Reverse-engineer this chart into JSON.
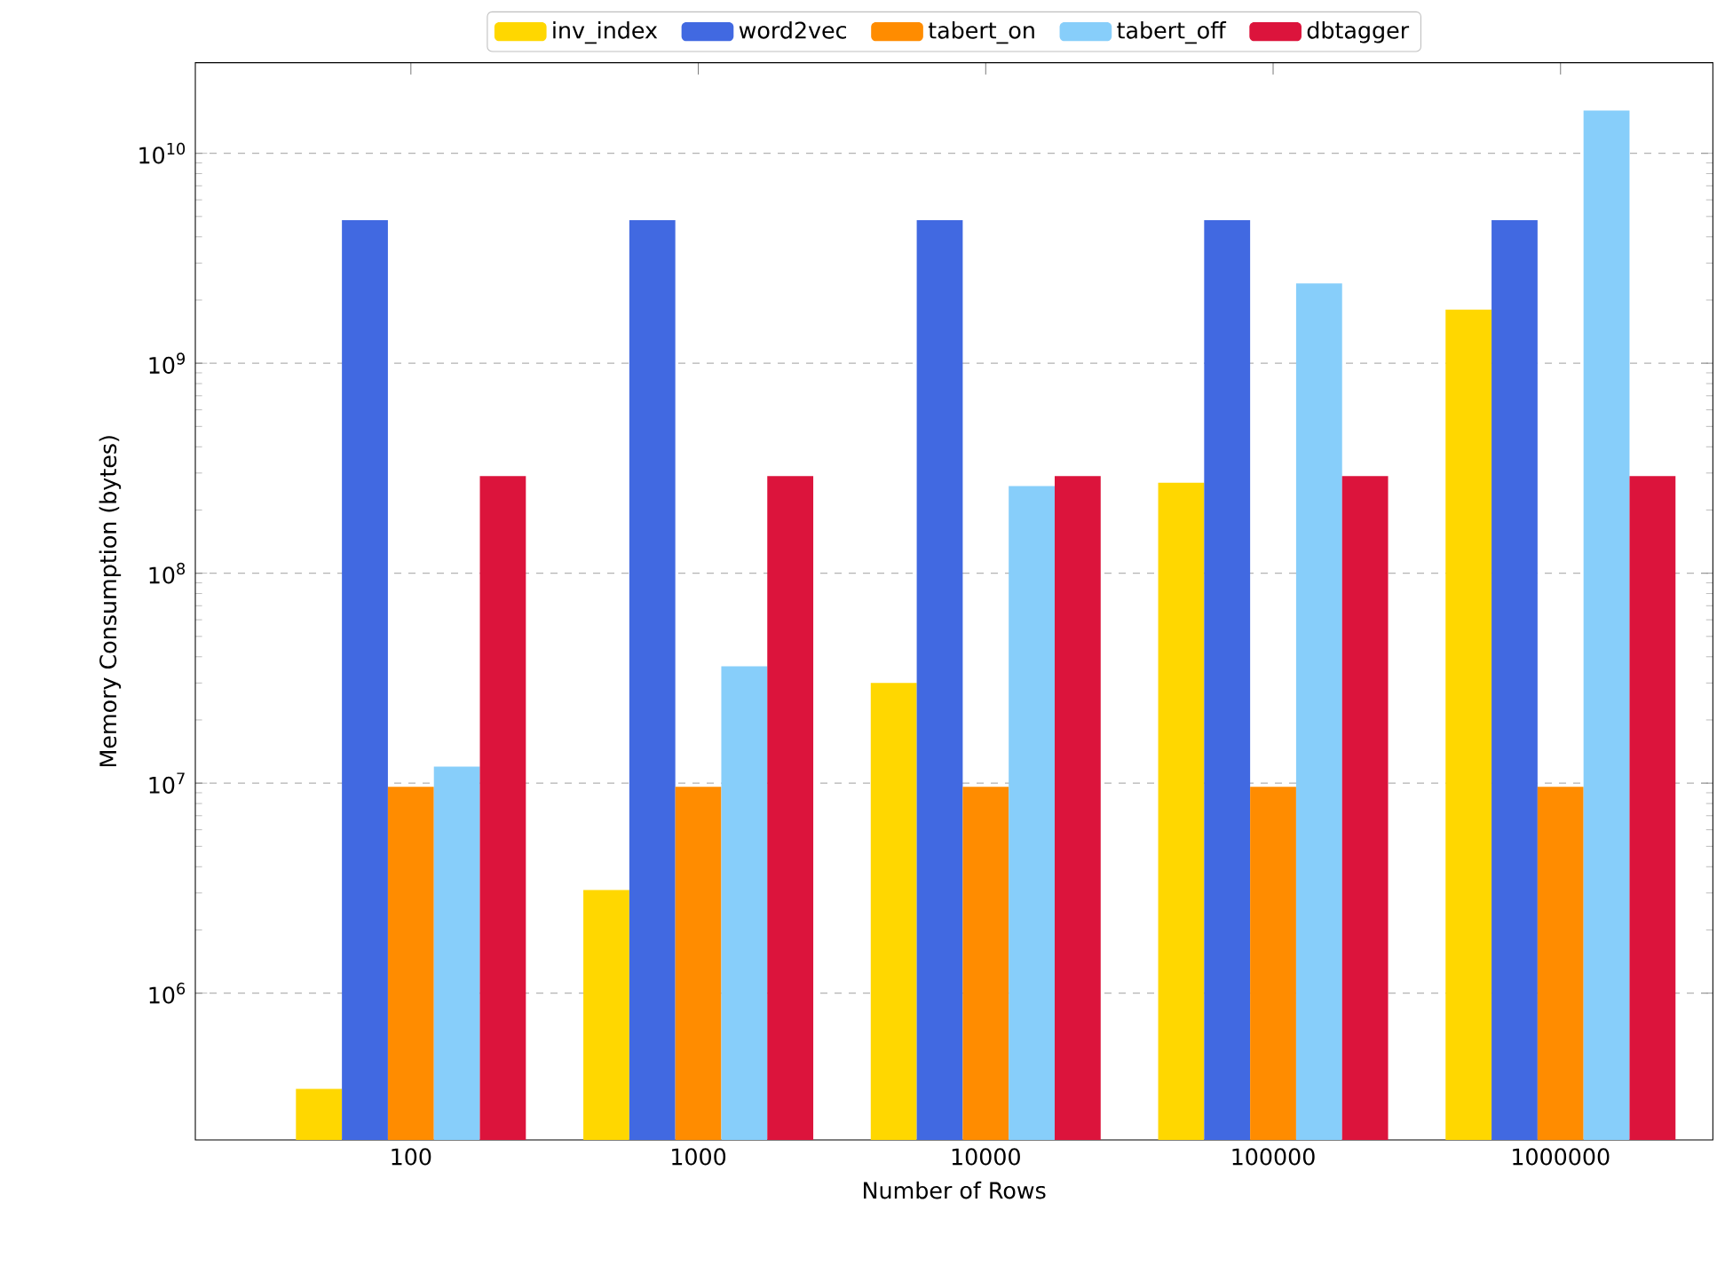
{
  "chart_data": {
    "type": "bar",
    "xlabel": "Number of Rows",
    "ylabel": "Memory Consumption (bytes)",
    "categories": [
      "100",
      "1000",
      "10000",
      "100000",
      "1000000"
    ],
    "log": "y",
    "ylim": [
      200000,
      27000000000
    ],
    "yticks": [
      {
        "value": 1000000,
        "label": "10$^{6}$"
      },
      {
        "value": 10000000,
        "label": "10$^{7}$"
      },
      {
        "value": 100000000,
        "label": "10$^{8}$"
      },
      {
        "value": 1000000000,
        "label": "10$^{9}$"
      },
      {
        "value": 10000000000,
        "label": "10$^{10}$"
      }
    ],
    "grid": "y",
    "legend": "top",
    "series": [
      {
        "name": "inv_index",
        "color": "#ffd700",
        "values": [
          350000,
          3100000,
          30000000,
          270000000,
          1800000000
        ]
      },
      {
        "name": "word2vec",
        "color": "#4169e1",
        "values": [
          4800000000,
          4800000000,
          4800000000,
          4800000000,
          4800000000
        ]
      },
      {
        "name": "tabert_on",
        "color": "#ff8c00",
        "values": [
          9600000,
          9600000,
          9600000,
          9600000,
          9600000
        ]
      },
      {
        "name": "tabert_off",
        "color": "#87cefa",
        "values": [
          12000000,
          36000000,
          260000000,
          2400000000,
          16000000000
        ]
      },
      {
        "name": "dbtagger",
        "color": "#dc143c",
        "values": [
          290000000,
          290000000,
          290000000,
          290000000,
          290000000
        ]
      }
    ]
  }
}
